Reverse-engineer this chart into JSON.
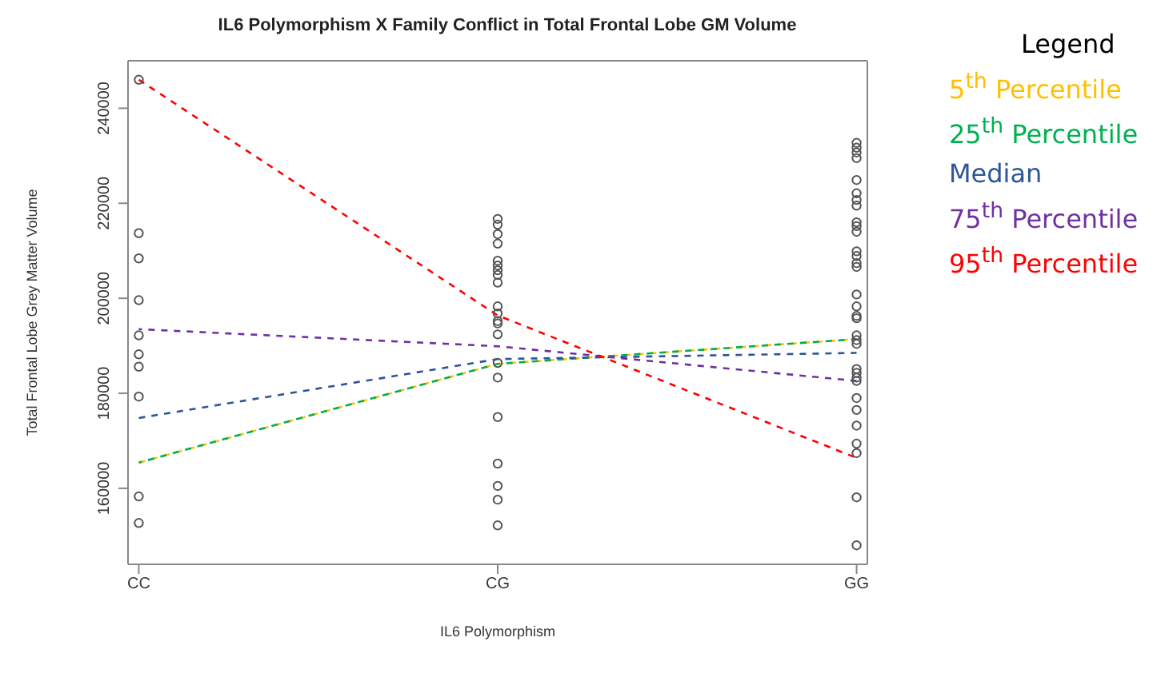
{
  "chart_data": {
    "type": "line",
    "title": "IL6 Polymorphism X Family Conflict in Total Frontal Lobe GM Volume",
    "xlabel": "IL6 Polymorphism",
    "ylabel": "Total Frontal Lobe Grey Matter Volume",
    "legend_title": "Legend",
    "categories": [
      "CC",
      "CG",
      "GG"
    ],
    "ylim": [
      144000,
      250000
    ],
    "yticks": [
      160000,
      180000,
      200000,
      220000,
      240000
    ],
    "grid": false,
    "legend": "top right",
    "series": [
      {
        "name": "5$^{th}$ Percentile",
        "color": "#ffc000",
        "values": [
          165400,
          186200,
          191400
        ],
        "line_style": "dashed",
        "marker": "none"
      },
      {
        "name": "25$^{th}$ Percentile",
        "color": "#00b050",
        "values": [
          165400,
          186200,
          191400
        ],
        "line_style": "dashed",
        "marker": "none"
      },
      {
        "name": "Median",
        "color": "#2f5597",
        "values": [
          174800,
          187200,
          188500
        ],
        "line_style": "dashed",
        "marker": "none"
      },
      {
        "name": "75$^{th}$ Percentile",
        "color": "#7030a0",
        "values": [
          193500,
          189900,
          182600
        ],
        "line_style": "dashed",
        "marker": "none"
      },
      {
        "name": "95$^{th}$ Percentile",
        "color": "#ff0000",
        "values": [
          246000,
          196400,
          166400
        ],
        "line_style": "dashed",
        "marker": "none"
      },
      {
        "type": "scatter",
        "color": "#555555",
        "marker": "circle",
        "x": [
          "CC",
          "CC",
          "CC",
          "CC",
          "CC",
          "CC",
          "CC",
          "CC",
          "CC",
          "CC"
        ],
        "values": [
          246000,
          213700,
          208400,
          199600,
          192200,
          188200,
          185600,
          179300,
          158300,
          152700
        ]
      },
      {
        "type": "scatter",
        "color": "#555555",
        "marker": "circle",
        "x": [
          "CG",
          "CG",
          "CG",
          "CG",
          "CG",
          "CG",
          "CG",
          "CG",
          "CG",
          "CG",
          "CG",
          "CG",
          "CG",
          "CG",
          "CG",
          "CG",
          "CG",
          "CG",
          "CG",
          "CG",
          "CG"
        ],
        "values": [
          216700,
          215500,
          213500,
          211500,
          207900,
          206900,
          205900,
          204900,
          203300,
          198300,
          196800,
          195200,
          194700,
          192400,
          186400,
          183300,
          175000,
          165200,
          160500,
          157600,
          152200
        ]
      },
      {
        "type": "scatter",
        "color": "#555555",
        "marker": "circle",
        "x": [
          "GG",
          "GG",
          "GG",
          "GG",
          "GG",
          "GG",
          "GG",
          "GG",
          "GG",
          "GG",
          "GG",
          "GG",
          "GG",
          "GG",
          "GG",
          "GG",
          "GG",
          "GG",
          "GG",
          "GG",
          "GG",
          "GG",
          "GG",
          "GG",
          "GG",
          "GG",
          "GG",
          "GG",
          "GG",
          "GG",
          "GG",
          "GG",
          "GG"
        ],
        "values": [
          232700,
          231700,
          230700,
          229500,
          224900,
          222100,
          220700,
          219500,
          216000,
          215200,
          214000,
          209900,
          208900,
          207400,
          206600,
          200800,
          198300,
          196300,
          195800,
          192200,
          191200,
          190400,
          185100,
          184300,
          183300,
          182600,
          179000,
          176500,
          173200,
          169400,
          167400,
          158100,
          148000
        ]
      }
    ]
  }
}
